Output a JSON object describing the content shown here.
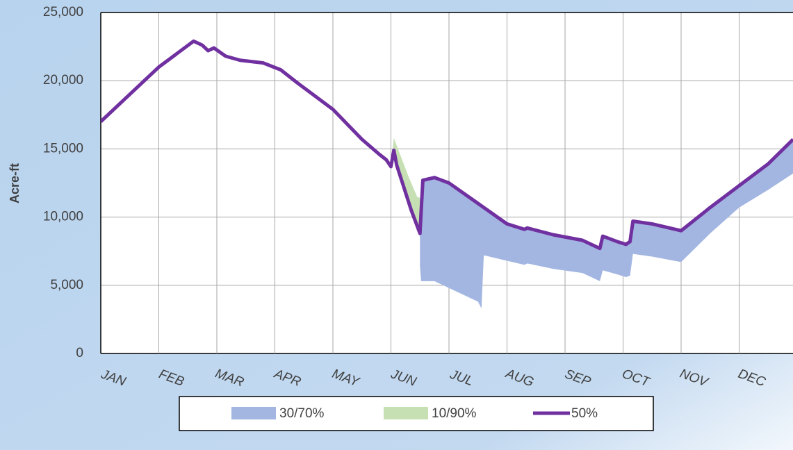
{
  "chart_data": {
    "type": "band-line",
    "y_axis_label": "Acre-ft",
    "categories": [
      "JAN",
      "FEB",
      "MAR",
      "APR",
      "MAY",
      "JUN",
      "JUL",
      "AUG",
      "SEP",
      "OCT",
      "NOV",
      "DEC"
    ],
    "xlim": [
      0,
      12
    ],
    "ylim": [
      0,
      25000
    ],
    "yticks": [
      0,
      {
        "value": 5000,
        "label": "5,000"
      },
      {
        "value": 10000,
        "label": "10,000"
      },
      {
        "value": 15000,
        "label": "15,000"
      },
      {
        "value": 20000,
        "label": "20,000"
      },
      {
        "value": 25000,
        "label": "25,000"
      }
    ],
    "grid": true,
    "series": [
      {
        "name": "30/70%",
        "type": "band",
        "color": "#a3b6e2",
        "x": [
          5.5,
          5.52,
          5.55,
          5.75,
          6.0,
          6.5,
          6.56,
          6.6,
          7.0,
          7.3,
          7.35,
          7.8,
          8.3,
          8.6,
          8.65,
          8.9,
          9.05,
          9.12,
          9.17,
          9.5,
          10,
          10.5,
          11,
          11.5,
          11.93
        ],
        "upper": [
          8800,
          12600,
          12700,
          12900,
          12500,
          11000,
          10800,
          10700,
          9500,
          9100,
          9200,
          8700,
          8300,
          7700,
          8600,
          8200,
          8000,
          8200,
          9700,
          9500,
          9000,
          10700,
          12300,
          13900,
          15700
        ],
        "lower": [
          6400,
          5300,
          5300,
          5300,
          4800,
          3800,
          3300,
          7200,
          6800,
          6500,
          6600,
          6200,
          5900,
          5300,
          6100,
          5800,
          5600,
          5700,
          7300,
          7100,
          6700,
          8800,
          10700,
          12000,
          13200
        ]
      },
      {
        "name": "10/90%",
        "type": "band",
        "color": "#c6e0b4",
        "x": [
          5.0,
          5.05,
          5.3,
          5.45,
          5.5,
          5.55
        ],
        "upper": [
          13700,
          15800,
          13000,
          11500,
          11400,
          12700
        ],
        "lower": [
          13700,
          14900,
          11000,
          9300,
          8800,
          12700
        ]
      },
      {
        "name": "50%",
        "type": "line",
        "color": "#7030a0",
        "x": [
          0,
          0.5,
          1,
          1.6,
          1.75,
          1.85,
          1.95,
          2.15,
          2.4,
          2.8,
          3.1,
          3.4,
          4,
          4.5,
          4.8,
          4.92,
          5.0,
          5.05,
          5.1,
          5.35,
          5.5,
          5.55,
          5.75,
          6.0,
          6.5,
          7.0,
          7.3,
          7.35,
          7.8,
          8.3,
          8.6,
          8.65,
          8.9,
          9.05,
          9.12,
          9.17,
          9.5,
          10,
          10.5,
          11,
          11.5,
          11.93
        ],
        "values": [
          17000,
          19000,
          21000,
          22900,
          22600,
          22200,
          22400,
          21800,
          21500,
          21300,
          20800,
          19800,
          17900,
          15700,
          14600,
          14200,
          13700,
          14900,
          13800,
          10500,
          8800,
          12700,
          12900,
          12500,
          11000,
          9500,
          9100,
          9200,
          8700,
          8300,
          7700,
          8600,
          8200,
          8000,
          8200,
          9700,
          9500,
          9000,
          10700,
          12300,
          13900,
          15700
        ]
      }
    ],
    "legend": "bottom"
  }
}
